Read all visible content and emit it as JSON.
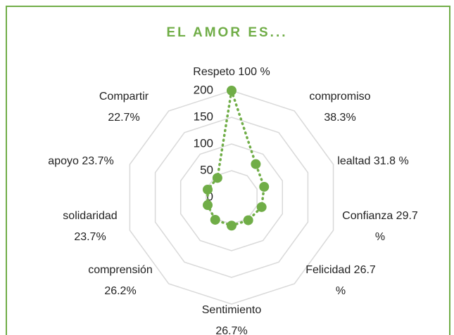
{
  "chart_data": {
    "type": "radar",
    "title": "EL AMOR ES...",
    "categories": [
      "Respeto 100 %",
      "compromiso 38.3%",
      "lealtad 31.8 %",
      "Confianza 29.7 %",
      "Felicidad 26.7 %",
      "Sentimiento 26.7%",
      "comprensión 26.2%",
      "solidaridad 23.7%",
      "apoyo 23.7%",
      "Compartir 22.7%"
    ],
    "values": [
      200,
      77,
      64,
      59,
      53,
      53,
      52,
      47,
      47,
      45
    ],
    "color": "#70ad47",
    "ylim": [
      0,
      200
    ],
    "yticks": [
      0,
      50,
      100,
      150,
      200
    ],
    "grid": true
  }
}
